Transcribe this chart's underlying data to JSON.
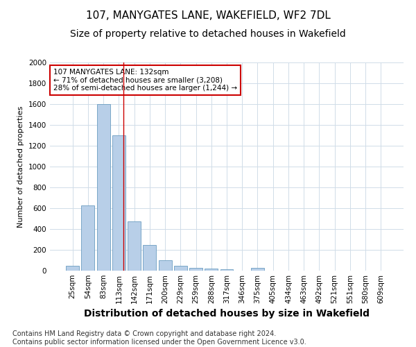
{
  "title": "107, MANYGATES LANE, WAKEFIELD, WF2 7DL",
  "subtitle": "Size of property relative to detached houses in Wakefield",
  "xlabel": "Distribution of detached houses by size in Wakefield",
  "ylabel": "Number of detached properties",
  "categories": [
    "25sqm",
    "54sqm",
    "83sqm",
    "113sqm",
    "142sqm",
    "171sqm",
    "200sqm",
    "229sqm",
    "259sqm",
    "288sqm",
    "317sqm",
    "346sqm",
    "375sqm",
    "405sqm",
    "434sqm",
    "463sqm",
    "492sqm",
    "521sqm",
    "551sqm",
    "580sqm",
    "609sqm"
  ],
  "values": [
    50,
    625,
    1600,
    1300,
    475,
    245,
    100,
    50,
    30,
    20,
    15,
    0,
    30,
    0,
    0,
    0,
    0,
    0,
    0,
    0,
    0
  ],
  "bar_color": "#b8cfe8",
  "bar_edge_color": "#6a9cc0",
  "grid_color": "#d0dce8",
  "background_color": "#ffffff",
  "annotation_line1": "107 MANYGATES LANE: 132sqm",
  "annotation_line2": "← 71% of detached houses are smaller (3,208)",
  "annotation_line3": "28% of semi-detached houses are larger (1,244) →",
  "vline_x": 3.28,
  "ylim": [
    0,
    2000
  ],
  "yticks": [
    0,
    200,
    400,
    600,
    800,
    1000,
    1200,
    1400,
    1600,
    1800,
    2000
  ],
  "footer_line1": "Contains HM Land Registry data © Crown copyright and database right 2024.",
  "footer_line2": "Contains public sector information licensed under the Open Government Licence v3.0.",
  "annotation_box_color": "#cc0000",
  "title_fontsize": 11,
  "subtitle_fontsize": 10,
  "ylabel_fontsize": 8,
  "xlabel_fontsize": 10,
  "tick_fontsize": 7.5,
  "annotation_fontsize": 7.5,
  "footer_fontsize": 7
}
